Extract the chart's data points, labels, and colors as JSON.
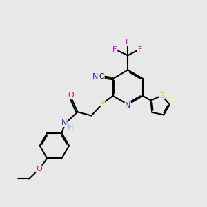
{
  "bg_color": "#e8e8e8",
  "bond_color": "#000000",
  "bond_lw": 1.5,
  "dbo": 0.055,
  "atom_colors": {
    "C": "#000000",
    "N": "#2222cc",
    "O": "#cc2222",
    "S": "#cccc00",
    "F": "#cc00cc",
    "H": "#7fbfbf"
  },
  "fs": 7.5
}
